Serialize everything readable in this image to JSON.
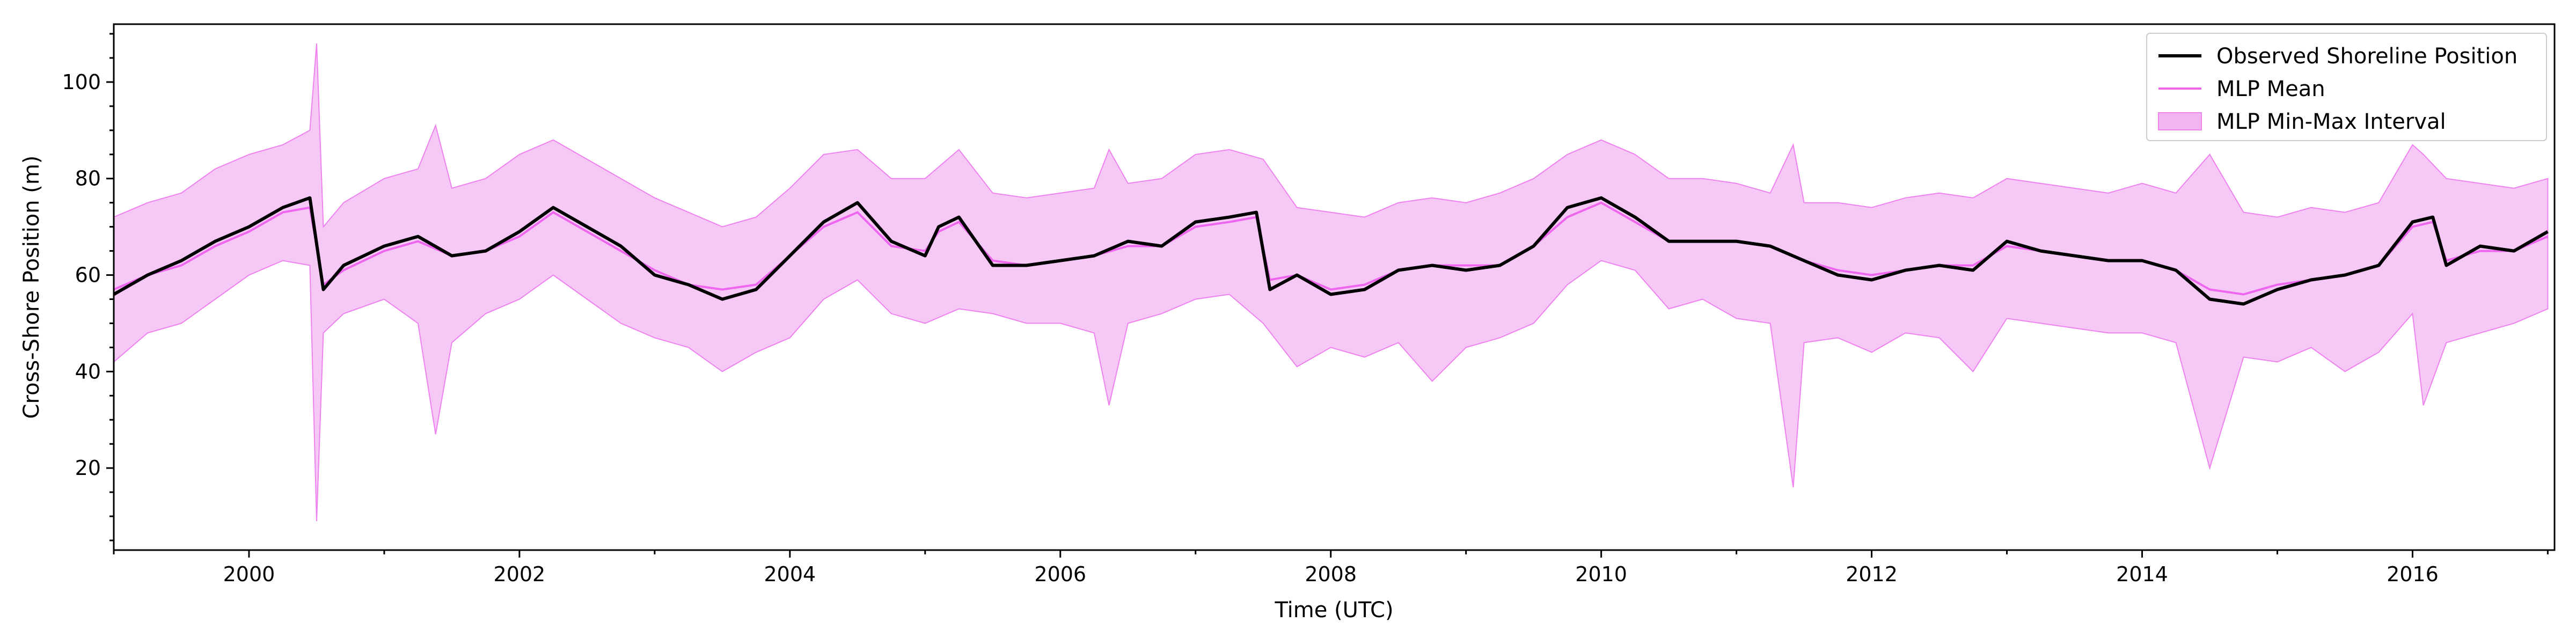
{
  "chart_data": {
    "type": "line",
    "title": "",
    "xlabel": "Time (UTC)",
    "ylabel": "Cross-Shore Position (m)",
    "xlim": [
      1999.0,
      2017.05
    ],
    "ylim": [
      3,
      112
    ],
    "xticks": [
      2000,
      2002,
      2004,
      2006,
      2008,
      2010,
      2012,
      2014,
      2016
    ],
    "xtick_labels": [
      "2000",
      "2002",
      "2004",
      "2006",
      "2008",
      "2010",
      "2012",
      "2014",
      "2016"
    ],
    "yticks": [
      20,
      40,
      60,
      80,
      100
    ],
    "ytick_labels": [
      "20",
      "40",
      "60",
      "80",
      "100"
    ],
    "grid": false,
    "legend_position": "top-right",
    "colors": {
      "observed": "#000000",
      "mean": "#ee66ee",
      "interval": "#f2b5f2",
      "interval_edge": "#ee82ee"
    },
    "series": [
      {
        "name": "Observed Shoreline Position",
        "kind": "line",
        "x": [
          1999.0,
          1999.25,
          1999.5,
          1999.75,
          2000.0,
          2000.25,
          2000.45,
          2000.55,
          2000.7,
          2001.0,
          2001.25,
          2001.5,
          2001.75,
          2002.0,
          2002.25,
          2002.5,
          2002.75,
          2003.0,
          2003.25,
          2003.5,
          2003.75,
          2004.0,
          2004.25,
          2004.5,
          2004.75,
          2005.0,
          2005.1,
          2005.25,
          2005.5,
          2005.75,
          2006.0,
          2006.25,
          2006.5,
          2006.75,
          2007.0,
          2007.25,
          2007.45,
          2007.55,
          2007.75,
          2008.0,
          2008.25,
          2008.5,
          2008.75,
          2009.0,
          2009.25,
          2009.5,
          2009.75,
          2010.0,
          2010.25,
          2010.5,
          2010.75,
          2011.0,
          2011.25,
          2011.5,
          2011.75,
          2012.0,
          2012.25,
          2012.5,
          2012.75,
          2013.0,
          2013.25,
          2013.5,
          2013.75,
          2014.0,
          2014.25,
          2014.5,
          2014.75,
          2015.0,
          2015.25,
          2015.5,
          2015.75,
          2016.0,
          2016.15,
          2016.25,
          2016.5,
          2016.75,
          2017.0
        ],
        "y": [
          56,
          60,
          63,
          67,
          70,
          74,
          76,
          57,
          62,
          66,
          68,
          64,
          65,
          69,
          74,
          70,
          66,
          60,
          58,
          55,
          57,
          64,
          71,
          75,
          67,
          64,
          70,
          72,
          62,
          62,
          63,
          64,
          67,
          66,
          71,
          72,
          73,
          57,
          60,
          56,
          57,
          61,
          62,
          61,
          62,
          66,
          74,
          76,
          72,
          67,
          67,
          67,
          66,
          63,
          60,
          59,
          61,
          62,
          61,
          67,
          65,
          64,
          63,
          63,
          61,
          55,
          54,
          57,
          59,
          60,
          62,
          71,
          72,
          62,
          66,
          65,
          69
        ]
      },
      {
        "name": "MLP Mean",
        "kind": "line",
        "x": [
          1999.0,
          1999.25,
          1999.5,
          1999.75,
          2000.0,
          2000.25,
          2000.45,
          2000.55,
          2000.7,
          2001.0,
          2001.25,
          2001.5,
          2001.75,
          2002.0,
          2002.25,
          2002.5,
          2002.75,
          2003.0,
          2003.25,
          2003.5,
          2003.75,
          2004.0,
          2004.25,
          2004.5,
          2004.75,
          2005.0,
          2005.1,
          2005.25,
          2005.5,
          2005.75,
          2006.0,
          2006.25,
          2006.5,
          2006.75,
          2007.0,
          2007.25,
          2007.45,
          2007.55,
          2007.75,
          2008.0,
          2008.25,
          2008.5,
          2008.75,
          2009.0,
          2009.25,
          2009.5,
          2009.75,
          2010.0,
          2010.25,
          2010.5,
          2010.75,
          2011.0,
          2011.25,
          2011.5,
          2011.75,
          2012.0,
          2012.25,
          2012.5,
          2012.75,
          2013.0,
          2013.25,
          2013.5,
          2013.75,
          2014.0,
          2014.25,
          2014.5,
          2014.75,
          2015.0,
          2015.25,
          2015.5,
          2015.75,
          2016.0,
          2016.15,
          2016.25,
          2016.5,
          2016.75,
          2017.0
        ],
        "y": [
          57,
          60,
          62,
          66,
          69,
          73,
          74,
          58,
          61,
          65,
          67,
          64,
          65,
          68,
          73,
          69,
          65,
          61,
          58,
          57,
          58,
          64,
          70,
          73,
          66,
          65,
          69,
          71,
          63,
          62,
          63,
          64,
          66,
          66,
          70,
          71,
          72,
          59,
          60,
          57,
          58,
          61,
          62,
          62,
          62,
          66,
          72,
          75,
          71,
          67,
          67,
          67,
          66,
          63,
          61,
          60,
          61,
          62,
          62,
          66,
          65,
          64,
          63,
          63,
          61,
          57,
          56,
          58,
          59,
          60,
          62,
          70,
          71,
          63,
          65,
          65,
          68
        ]
      },
      {
        "name": "MLP Min-Max Interval",
        "kind": "band",
        "x": [
          1999.0,
          1999.25,
          1999.5,
          1999.75,
          2000.0,
          2000.25,
          2000.45,
          2000.5,
          2000.55,
          2000.7,
          2001.0,
          2001.25,
          2001.38,
          2001.5,
          2001.75,
          2002.0,
          2002.25,
          2002.5,
          2002.75,
          2003.0,
          2003.25,
          2003.5,
          2003.75,
          2004.0,
          2004.25,
          2004.5,
          2004.75,
          2005.0,
          2005.25,
          2005.5,
          2005.75,
          2006.0,
          2006.25,
          2006.36,
          2006.5,
          2006.75,
          2007.0,
          2007.25,
          2007.5,
          2007.75,
          2008.0,
          2008.25,
          2008.5,
          2008.75,
          2009.0,
          2009.25,
          2009.5,
          2009.75,
          2010.0,
          2010.25,
          2010.5,
          2010.75,
          2011.0,
          2011.25,
          2011.42,
          2011.5,
          2011.75,
          2012.0,
          2012.25,
          2012.5,
          2012.75,
          2013.0,
          2013.25,
          2013.5,
          2013.75,
          2014.0,
          2014.25,
          2014.5,
          2014.75,
          2015.0,
          2015.25,
          2015.5,
          2015.75,
          2016.0,
          2016.08,
          2016.25,
          2016.5,
          2016.75,
          2017.0
        ],
        "lower": [
          42,
          48,
          50,
          55,
          60,
          63,
          62,
          9,
          48,
          52,
          55,
          50,
          27,
          46,
          52,
          55,
          60,
          55,
          50,
          47,
          45,
          40,
          44,
          47,
          55,
          59,
          52,
          50,
          53,
          52,
          50,
          50,
          48,
          33,
          50,
          52,
          55,
          56,
          50,
          41,
          45,
          43,
          46,
          38,
          45,
          47,
          50,
          58,
          63,
          61,
          53,
          55,
          51,
          50,
          16,
          46,
          47,
          44,
          48,
          47,
          40,
          51,
          50,
          49,
          48,
          48,
          46,
          20,
          43,
          42,
          45,
          40,
          44,
          52,
          33,
          46,
          48,
          50,
          53
        ],
        "upper": [
          72,
          75,
          77,
          82,
          85,
          87,
          90,
          108,
          70,
          75,
          80,
          82,
          91,
          78,
          80,
          85,
          88,
          84,
          80,
          76,
          73,
          70,
          72,
          78,
          85,
          86,
          80,
          80,
          86,
          77,
          76,
          77,
          78,
          86,
          79,
          80,
          85,
          86,
          84,
          74,
          73,
          72,
          75,
          76,
          75,
          77,
          80,
          85,
          88,
          85,
          80,
          80,
          79,
          77,
          87,
          75,
          75,
          74,
          76,
          77,
          76,
          80,
          79,
          78,
          77,
          79,
          77,
          85,
          73,
          72,
          74,
          73,
          75,
          87,
          85,
          80,
          79,
          78,
          80
        ]
      }
    ]
  }
}
